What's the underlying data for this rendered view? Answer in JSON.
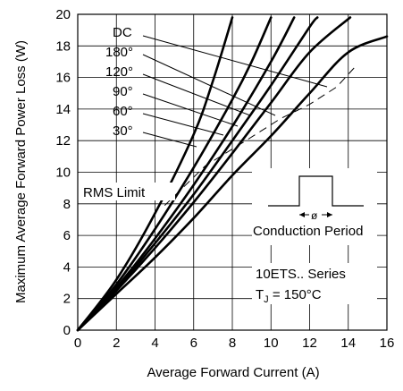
{
  "chart_data": {
    "type": "line",
    "xlabel": "Average Forward Current (A)",
    "ylabel": "Maximum Average Forward Power Loss (W)",
    "xlim": [
      0,
      16
    ],
    "ylim": [
      0,
      20
    ],
    "x_ticks": [
      "0",
      "2",
      "4",
      "6",
      "8",
      "10",
      "12",
      "14",
      "16"
    ],
    "y_ticks": [
      "0",
      "2",
      "4",
      "6",
      "8",
      "10",
      "12",
      "14",
      "16",
      "18",
      "20"
    ],
    "grid": true,
    "series": [
      {
        "name": "30°",
        "x": [
          0,
          2,
          4,
          6,
          7,
          8
        ],
        "y": [
          0,
          3.2,
          7.4,
          12.4,
          15.8,
          19.8
        ]
      },
      {
        "name": "60°",
        "x": [
          0,
          2,
          4,
          6,
          8,
          9,
          10
        ],
        "y": [
          0,
          2.9,
          6.4,
          10.3,
          14.6,
          17.0,
          19.8
        ]
      },
      {
        "name": "90°",
        "x": [
          0,
          2,
          4,
          6,
          8,
          10,
          11.2
        ],
        "y": [
          0,
          2.7,
          5.8,
          9.2,
          12.9,
          17.0,
          19.8
        ]
      },
      {
        "name": "120°",
        "x": [
          0,
          2,
          4,
          6,
          8,
          10,
          12,
          12.4
        ],
        "y": [
          0,
          2.6,
          5.5,
          8.6,
          12.0,
          15.5,
          19.2,
          19.8
        ]
      },
      {
        "name": "180°",
        "x": [
          0,
          2,
          4,
          6,
          8,
          10,
          12,
          14.1
        ],
        "y": [
          0,
          2.5,
          5.2,
          8.1,
          11.2,
          14.4,
          17.6,
          19.8
        ]
      },
      {
        "name": "DC",
        "x": [
          0,
          2,
          4,
          6,
          8,
          10,
          12,
          14,
          16
        ],
        "y": [
          0,
          2.3,
          4.6,
          7.1,
          9.8,
          12.3,
          15.0,
          17.6,
          18.6
        ]
      }
    ],
    "rms_limit": {
      "label": "RMS Limit",
      "x": [
        4.5,
        6.6,
        8.7,
        10.5,
        12.0,
        13.4,
        14.3
      ],
      "y": [
        7.9,
        10.4,
        12.0,
        13.4,
        14.3,
        15.4,
        16.6
      ]
    },
    "annotations": {
      "curve_labels": [
        "DC",
        "180°",
        "120°",
        "90°",
        "60°",
        "30°"
      ],
      "conduction_period": "Conduction Period",
      "phi": "ø",
      "series_label": "10ETS.. Series",
      "tj_prefix": "T",
      "tj_sub": "J",
      "tj_value": " = 150°C"
    }
  }
}
